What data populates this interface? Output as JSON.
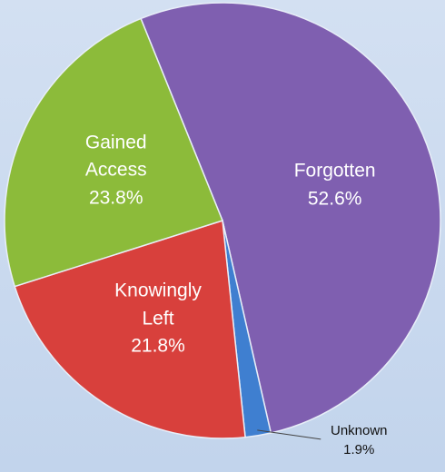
{
  "chart_data": {
    "type": "pie",
    "categories": [
      "Forgotten",
      "Unknown",
      "Knowingly Left",
      "Gained Access"
    ],
    "values": [
      52.6,
      1.9,
      21.8,
      23.8
    ],
    "value_labels": [
      "52.6%",
      "1.9%",
      "21.8%",
      "23.8%"
    ],
    "colors": [
      "#7f5fb0",
      "#3f7fd0",
      "#d8403c",
      "#8cbb3a"
    ]
  }
}
